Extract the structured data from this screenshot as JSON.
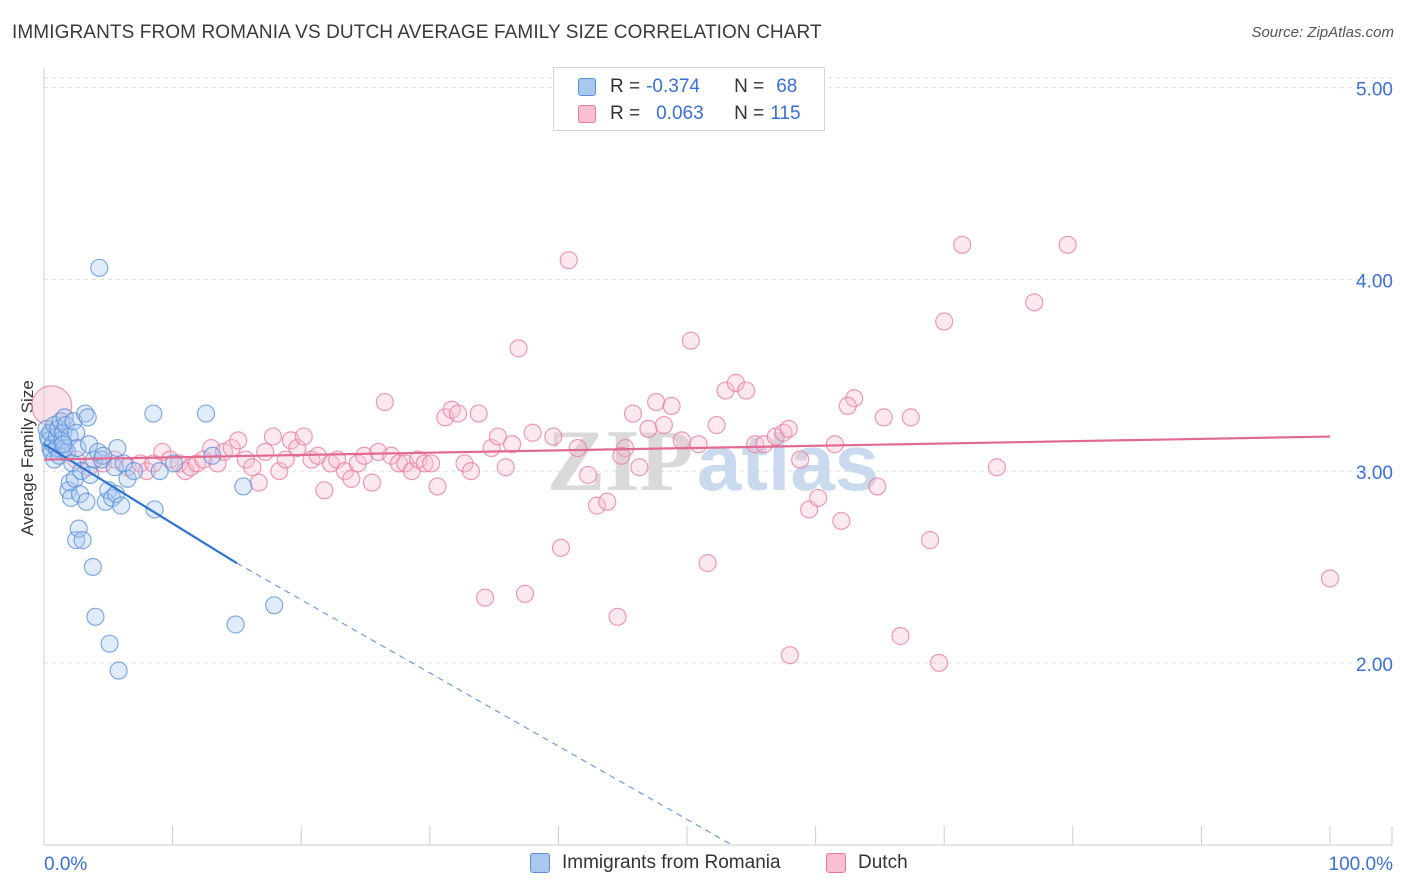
{
  "title": "IMMIGRANTS FROM ROMANIA VS DUTCH AVERAGE FAMILY SIZE CORRELATION CHART",
  "source": "Source: ZipAtlas.com",
  "watermark": {
    "zip": "ZIP",
    "atlas": "atlas"
  },
  "legend": {
    "r_label": "R =",
    "n_label": "N =",
    "rows": [
      {
        "r": "-0.374",
        "n": "68",
        "fill": "#a8c8f0",
        "stroke": "#5b8fd8"
      },
      {
        "r": "0.063",
        "n": "115",
        "fill": "#f7bfd0",
        "stroke": "#e87a9c"
      }
    ]
  },
  "bottom_legend": {
    "romania": "Immigrants from Romania",
    "dutch": "Dutch"
  },
  "chart_data": {
    "type": "scatter",
    "title": "IMMIGRANTS FROM ROMANIA VS DUTCH AVERAGE FAMILY SIZE CORRELATION CHART",
    "xlabel": "",
    "ylabel": "Average Family Size",
    "xlim": [
      0,
      100
    ],
    "ylim": [
      1.05,
      5.05
    ],
    "x_tick_labels": {
      "left": "0.0%",
      "right": "100.0%"
    },
    "y_ticks": [
      {
        "value": 2.0,
        "label": "2.00"
      },
      {
        "value": 3.0,
        "label": "3.00"
      },
      {
        "value": 4.0,
        "label": "4.00"
      },
      {
        "value": 5.0,
        "label": "5.00"
      }
    ],
    "series": [
      {
        "name": "Immigrants from Romania",
        "color": "#5b8fd8",
        "fill": "#a8c8f0",
        "trend": {
          "x0": 0,
          "y0": 3.14,
          "x1": 15,
          "y1": 2.52,
          "dash_to_x": 53.5,
          "dash_to_y": 1.05,
          "color": "#2e72d2"
        },
        "points": [
          [
            0.2,
            3.22
          ],
          [
            0.3,
            3.18
          ],
          [
            0.4,
            3.16
          ],
          [
            0.5,
            3.12
          ],
          [
            0.5,
            3.2
          ],
          [
            0.6,
            3.1
          ],
          [
            0.7,
            3.14
          ],
          [
            0.8,
            3.24
          ],
          [
            0.8,
            3.06
          ],
          [
            1.0,
            3.18
          ],
          [
            1.0,
            3.12
          ],
          [
            1.1,
            3.22
          ],
          [
            1.2,
            3.08
          ],
          [
            1.3,
            3.26
          ],
          [
            1.4,
            3.16
          ],
          [
            1.5,
            3.2
          ],
          [
            1.6,
            3.28
          ],
          [
            1.6,
            3.12
          ],
          [
            1.7,
            3.24
          ],
          [
            1.8,
            3.1
          ],
          [
            1.9,
            2.9
          ],
          [
            2.0,
            2.94
          ],
          [
            2.0,
            3.18
          ],
          [
            2.1,
            2.86
          ],
          [
            2.2,
            3.04
          ],
          [
            2.3,
            3.26
          ],
          [
            2.4,
            2.96
          ],
          [
            2.5,
            2.64
          ],
          [
            2.5,
            3.2
          ],
          [
            2.6,
            3.12
          ],
          [
            2.7,
            2.7
          ],
          [
            2.8,
            2.88
          ],
          [
            2.9,
            3.0
          ],
          [
            3.0,
            2.64
          ],
          [
            3.2,
            3.3
          ],
          [
            3.3,
            2.84
          ],
          [
            3.4,
            3.28
          ],
          [
            3.5,
            3.14
          ],
          [
            3.6,
            2.98
          ],
          [
            3.8,
            2.5
          ],
          [
            3.9,
            3.06
          ],
          [
            4.0,
            2.24
          ],
          [
            4.2,
            3.1
          ],
          [
            4.3,
            4.06
          ],
          [
            4.5,
            3.06
          ],
          [
            4.6,
            3.08
          ],
          [
            4.8,
            2.84
          ],
          [
            5.0,
            2.9
          ],
          [
            5.1,
            2.1
          ],
          [
            5.3,
            2.86
          ],
          [
            5.5,
            3.02
          ],
          [
            5.6,
            2.88
          ],
          [
            5.7,
            3.12
          ],
          [
            5.8,
            1.96
          ],
          [
            6.0,
            2.82
          ],
          [
            6.2,
            3.04
          ],
          [
            6.5,
            2.96
          ],
          [
            7.0,
            3.0
          ],
          [
            8.5,
            3.3
          ],
          [
            8.6,
            2.8
          ],
          [
            9.0,
            3.0
          ],
          [
            10.1,
            3.04
          ],
          [
            12.6,
            3.3
          ],
          [
            13.1,
            3.08
          ],
          [
            14.9,
            2.2
          ],
          [
            15.5,
            2.92
          ],
          [
            17.9,
            2.3
          ],
          [
            1.5,
            3.14
          ]
        ]
      },
      {
        "name": "Dutch",
        "color": "#e87a9c",
        "fill": "#f7bfd0",
        "trend": {
          "x0": 0,
          "y0": 3.06,
          "x1": 100,
          "y1": 3.18,
          "color": "#e06a90"
        },
        "points": [
          [
            0.6,
            3.34
          ],
          [
            1.5,
            3.1
          ],
          [
            2.5,
            3.06
          ],
          [
            3.5,
            3.02
          ],
          [
            4.6,
            3.04
          ],
          [
            5.5,
            3.06
          ],
          [
            6.5,
            3.02
          ],
          [
            7.5,
            3.04
          ],
          [
            8.0,
            3.0
          ],
          [
            8.5,
            3.04
          ],
          [
            9.2,
            3.1
          ],
          [
            9.8,
            3.06
          ],
          [
            10.5,
            3.04
          ],
          [
            11.0,
            3.0
          ],
          [
            11.4,
            3.02
          ],
          [
            11.9,
            3.04
          ],
          [
            12.4,
            3.06
          ],
          [
            13.0,
            3.12
          ],
          [
            13.5,
            3.04
          ],
          [
            14.0,
            3.1
          ],
          [
            14.6,
            3.12
          ],
          [
            15.1,
            3.16
          ],
          [
            15.7,
            3.06
          ],
          [
            16.2,
            3.02
          ],
          [
            16.7,
            2.94
          ],
          [
            17.2,
            3.1
          ],
          [
            17.8,
            3.18
          ],
          [
            18.3,
            3.0
          ],
          [
            18.8,
            3.06
          ],
          [
            19.2,
            3.16
          ],
          [
            19.7,
            3.12
          ],
          [
            20.2,
            3.18
          ],
          [
            20.8,
            3.06
          ],
          [
            21.3,
            3.08
          ],
          [
            21.8,
            2.9
          ],
          [
            22.3,
            3.04
          ],
          [
            22.8,
            3.06
          ],
          [
            23.4,
            3.0
          ],
          [
            23.9,
            2.96
          ],
          [
            24.4,
            3.04
          ],
          [
            24.9,
            3.08
          ],
          [
            25.5,
            2.94
          ],
          [
            26.0,
            3.1
          ],
          [
            26.5,
            3.36
          ],
          [
            27.0,
            3.08
          ],
          [
            27.6,
            3.04
          ],
          [
            28.1,
            3.04
          ],
          [
            28.6,
            3.0
          ],
          [
            29.1,
            3.06
          ],
          [
            29.6,
            3.04
          ],
          [
            30.1,
            3.04
          ],
          [
            30.6,
            2.92
          ],
          [
            31.2,
            3.28
          ],
          [
            31.7,
            3.32
          ],
          [
            32.2,
            3.3
          ],
          [
            32.7,
            3.04
          ],
          [
            33.2,
            3.0
          ],
          [
            33.8,
            3.3
          ],
          [
            34.3,
            2.34
          ],
          [
            34.8,
            3.12
          ],
          [
            35.3,
            3.18
          ],
          [
            35.9,
            3.02
          ],
          [
            36.4,
            3.14
          ],
          [
            36.9,
            3.64
          ],
          [
            37.4,
            2.36
          ],
          [
            38.0,
            3.2
          ],
          [
            39.6,
            3.18
          ],
          [
            40.2,
            2.6
          ],
          [
            40.8,
            4.1
          ],
          [
            41.5,
            3.12
          ],
          [
            42.3,
            2.98
          ],
          [
            43.0,
            2.82
          ],
          [
            43.8,
            2.84
          ],
          [
            44.6,
            2.24
          ],
          [
            45.2,
            3.12
          ],
          [
            45.8,
            3.3
          ],
          [
            46.3,
            3.02
          ],
          [
            47.0,
            3.22
          ],
          [
            47.6,
            3.36
          ],
          [
            48.2,
            3.24
          ],
          [
            48.8,
            3.34
          ],
          [
            49.6,
            3.16
          ],
          [
            50.3,
            3.68
          ],
          [
            50.9,
            3.14
          ],
          [
            51.6,
            2.52
          ],
          [
            52.3,
            3.24
          ],
          [
            53.0,
            3.42
          ],
          [
            53.8,
            3.46
          ],
          [
            54.6,
            3.42
          ],
          [
            55.3,
            3.14
          ],
          [
            56.0,
            3.14
          ],
          [
            56.9,
            3.18
          ],
          [
            57.5,
            3.2
          ],
          [
            58.0,
            2.04
          ],
          [
            58.8,
            3.06
          ],
          [
            59.5,
            2.8
          ],
          [
            60.2,
            2.86
          ],
          [
            61.5,
            3.14
          ],
          [
            62.0,
            2.74
          ],
          [
            63.0,
            3.38
          ],
          [
            64.8,
            2.92
          ],
          [
            65.3,
            3.28
          ],
          [
            66.6,
            2.14
          ],
          [
            67.4,
            3.28
          ],
          [
            68.9,
            2.64
          ],
          [
            69.6,
            2.0
          ],
          [
            70.0,
            3.78
          ],
          [
            71.4,
            4.18
          ],
          [
            74.1,
            3.02
          ],
          [
            77.0,
            3.88
          ],
          [
            79.6,
            4.18
          ],
          [
            100.0,
            2.44
          ],
          [
            44.9,
            3.08
          ],
          [
            57.9,
            3.22
          ],
          [
            62.5,
            3.34
          ]
        ]
      }
    ]
  }
}
